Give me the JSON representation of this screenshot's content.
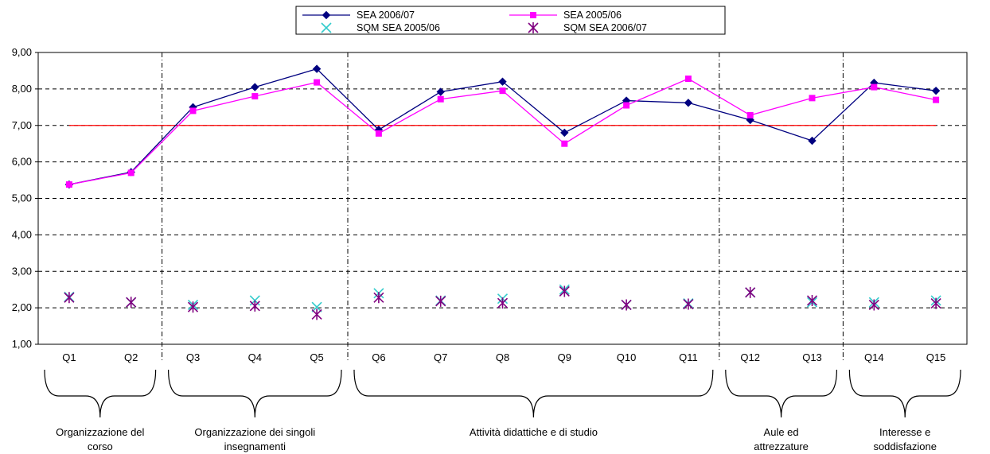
{
  "chart_data": {
    "type": "line",
    "title": "",
    "xlabel": "",
    "ylabel": "",
    "categories": [
      "Q1",
      "Q2",
      "Q3",
      "Q4",
      "Q5",
      "Q6",
      "Q7",
      "Q8",
      "Q9",
      "Q10",
      "Q11",
      "Q12",
      "Q13",
      "Q14",
      "Q15"
    ],
    "ylim": [
      1,
      9
    ],
    "y_ticks": [
      "1,00",
      "2,00",
      "3,00",
      "4,00",
      "5,00",
      "6,00",
      "7,00",
      "8,00",
      "9,00"
    ],
    "y_tick_values": [
      1,
      2,
      3,
      4,
      5,
      6,
      7,
      8,
      9
    ],
    "grid": "horizontal dashed",
    "legend_position": "top-center",
    "reference_line": {
      "value": 7.0,
      "color": "#ff0000"
    },
    "series": [
      {
        "name": "SEA 2006/07",
        "color": "#000080",
        "marker": "diamond",
        "line": true,
        "values": [
          5.38,
          5.72,
          7.5,
          8.05,
          8.55,
          6.88,
          7.92,
          8.2,
          6.8,
          7.68,
          7.62,
          7.15,
          6.58,
          8.17,
          7.95
        ]
      },
      {
        "name": "SEA 2005/06",
        "color": "#ff00ff",
        "marker": "square",
        "line": true,
        "values": [
          5.38,
          5.7,
          7.4,
          7.8,
          8.18,
          6.78,
          7.72,
          7.95,
          6.5,
          7.55,
          8.28,
          7.28,
          7.75,
          8.05,
          7.7
        ]
      },
      {
        "name": "SQM SEA 2005/06",
        "color": "#33cccc",
        "marker": "x",
        "line": false,
        "values": [
          2.3,
          2.15,
          2.08,
          2.2,
          2.02,
          2.4,
          2.2,
          2.25,
          2.5,
          2.08,
          2.12,
          2.42,
          2.15,
          2.15,
          2.2
        ]
      },
      {
        "name": "SQM SEA 2006/07",
        "color": "#800080",
        "marker": "star",
        "line": false,
        "values": [
          2.28,
          2.15,
          2.02,
          2.05,
          1.82,
          2.28,
          2.18,
          2.13,
          2.45,
          2.08,
          2.1,
          2.42,
          2.2,
          2.08,
          2.12
        ]
      }
    ],
    "groups": [
      {
        "label_lines": [
          "Organizzazione del",
          "corso"
        ],
        "from": 0,
        "to": 1
      },
      {
        "label_lines": [
          "Organizzazione dei singoli",
          "insegnamenti"
        ],
        "from": 2,
        "to": 4
      },
      {
        "label_lines": [
          "Attività didattiche e di studio"
        ],
        "from": 5,
        "to": 10
      },
      {
        "label_lines": [
          "Aule ed",
          "attrezzature"
        ],
        "from": 11,
        "to": 12
      },
      {
        "label_lines": [
          "Interesse e",
          "soddisfazione"
        ],
        "from": 13,
        "to": 14
      }
    ]
  }
}
